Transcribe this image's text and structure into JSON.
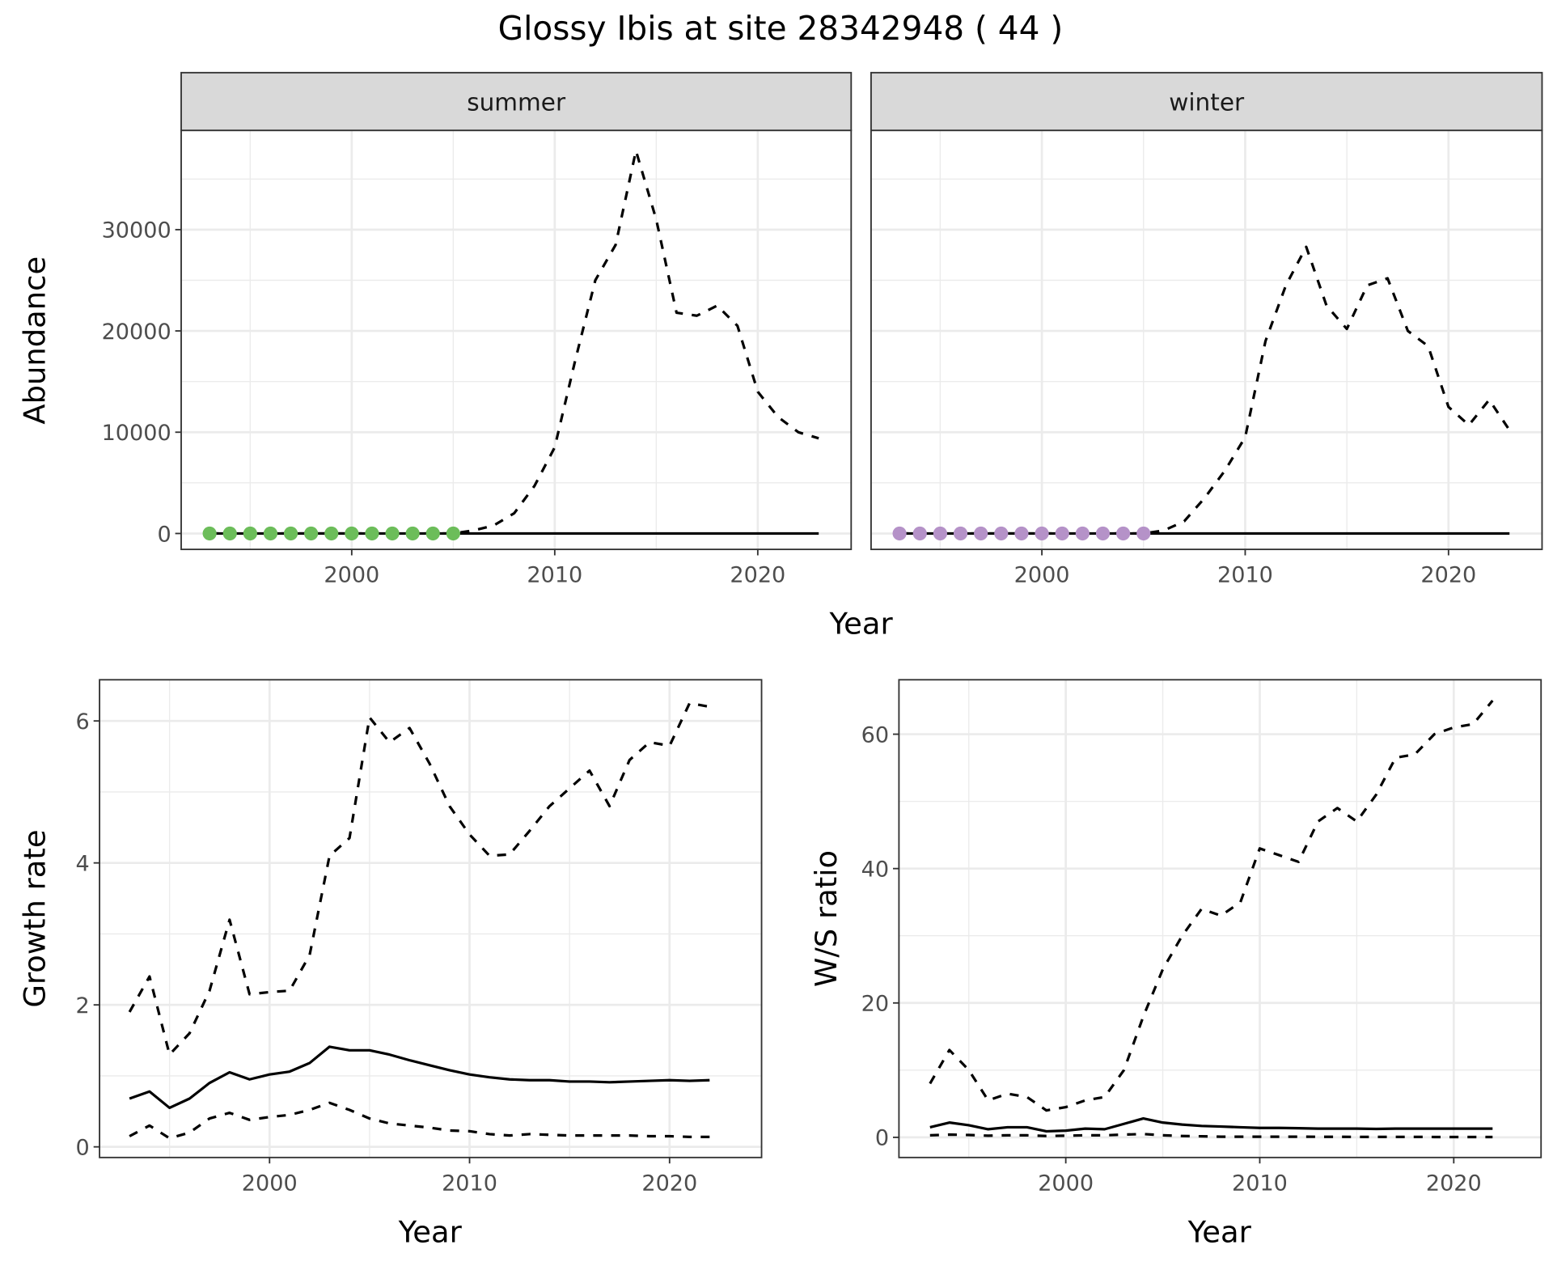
{
  "title": "Glossy Ibis at site 28342948 ( 44 )",
  "colors": {
    "summer_points": "#6cbd5a",
    "winter_points": "#b592c8",
    "line": "#000000",
    "strip_bg": "#d9d9d9",
    "grid": "#ebebeb"
  },
  "chart_data": [
    {
      "type": "line",
      "facet": "summer",
      "xlabel": "Year",
      "ylabel": "Abundance",
      "xlim": [
        1991.6,
        2024.6
      ],
      "ylim": [
        -1570,
        39800
      ],
      "xticks": [
        2000,
        2010,
        2020
      ],
      "yticks": [
        0,
        10000,
        20000,
        30000
      ],
      "grid": true,
      "points": {
        "x": [
          1993,
          1994,
          1995,
          1996,
          1997,
          1998,
          1999,
          2000,
          2001,
          2002,
          2003,
          2004,
          2005
        ],
        "y": [
          0,
          0,
          0,
          0,
          0,
          0,
          0,
          0,
          0,
          0,
          0,
          0,
          0
        ],
        "color": "#6cbd5a"
      },
      "series": [
        {
          "style": "dashed",
          "x": [
            1993,
            1994,
            1995,
            1996,
            1997,
            1998,
            1999,
            2000,
            2001,
            2002,
            2003,
            2004,
            2005,
            2006,
            2007,
            2008,
            2009,
            2010,
            2011,
            2012,
            2013,
            2014,
            2015,
            2016,
            2017,
            2018,
            2019,
            2020,
            2021,
            2022,
            2023
          ],
          "y": [
            0,
            0,
            0,
            0,
            0,
            0,
            0,
            0,
            0,
            0,
            0,
            0,
            0,
            300,
            800,
            2000,
            4700,
            8500,
            17000,
            25000,
            28500,
            37800,
            31000,
            21800,
            21500,
            22500,
            20500,
            14000,
            11500,
            10000,
            9400
          ]
        },
        {
          "style": "solid",
          "x": [
            1993,
            2023
          ],
          "y": [
            0,
            0
          ]
        }
      ]
    },
    {
      "type": "line",
      "facet": "winter",
      "xlabel": "Year",
      "ylabel": "Abundance",
      "xlim": [
        1991.6,
        2024.6
      ],
      "ylim": [
        -1570,
        39800
      ],
      "xticks": [
        2000,
        2010,
        2020
      ],
      "yticks": [
        0,
        10000,
        20000,
        30000
      ],
      "grid": true,
      "points": {
        "x": [
          1993,
          1994,
          1995,
          1996,
          1997,
          1998,
          1999,
          2000,
          2001,
          2002,
          2003,
          2004,
          2005
        ],
        "y": [
          0,
          0,
          0,
          0,
          0,
          0,
          0,
          0,
          0,
          0,
          0,
          0,
          0
        ],
        "color": "#b592c8"
      },
      "series": [
        {
          "style": "dashed",
          "x": [
            1993,
            1994,
            1995,
            1996,
            1997,
            1998,
            1999,
            2000,
            2001,
            2002,
            2003,
            2004,
            2005,
            2006,
            2007,
            2008,
            2009,
            2010,
            2011,
            2012,
            2013,
            2014,
            2015,
            2016,
            2017,
            2018,
            2019,
            2020,
            2021,
            2022,
            2023
          ],
          "y": [
            0,
            0,
            0,
            0,
            0,
            0,
            0,
            0,
            0,
            0,
            0,
            0,
            0,
            300,
            1200,
            3500,
            6200,
            9500,
            19000,
            24500,
            28300,
            22500,
            20200,
            24500,
            25200,
            20000,
            18500,
            12500,
            10700,
            13200,
            10200
          ]
        },
        {
          "style": "solid",
          "x": [
            1993,
            2023
          ],
          "y": [
            0,
            0
          ]
        }
      ]
    },
    {
      "type": "line",
      "xlabel": "Year",
      "ylabel": "Growth rate",
      "xlim": [
        1991.5,
        2024.6
      ],
      "ylim": [
        -0.15,
        6.58
      ],
      "xticks": [
        2000,
        2010,
        2020
      ],
      "yticks": [
        0,
        2,
        4,
        6
      ],
      "grid": true,
      "series": [
        {
          "style": "dashed",
          "x": [
            1993,
            1994,
            1995,
            1996,
            1997,
            1998,
            1999,
            2000,
            2001,
            2002,
            2003,
            2004,
            2005,
            2006,
            2007,
            2008,
            2009,
            2010,
            2011,
            2012,
            2013,
            2014,
            2015,
            2016,
            2017,
            2018,
            2019,
            2020,
            2021,
            2022
          ],
          "y": [
            1.9,
            2.4,
            1.3,
            1.6,
            2.2,
            3.2,
            2.15,
            2.18,
            2.2,
            2.7,
            4.1,
            4.35,
            6.05,
            5.7,
            5.9,
            5.4,
            4.8,
            4.4,
            4.1,
            4.12,
            4.45,
            4.8,
            5.05,
            5.3,
            4.8,
            5.45,
            5.7,
            5.65,
            6.25,
            6.2
          ]
        },
        {
          "style": "solid",
          "x": [
            1993,
            1994,
            1995,
            1996,
            1997,
            1998,
            1999,
            2000,
            2001,
            2002,
            2003,
            2004,
            2005,
            2006,
            2007,
            2008,
            2009,
            2010,
            2011,
            2012,
            2013,
            2014,
            2015,
            2016,
            2017,
            2018,
            2019,
            2020,
            2021,
            2022
          ],
          "y": [
            0.68,
            0.78,
            0.55,
            0.68,
            0.9,
            1.05,
            0.95,
            1.02,
            1.06,
            1.18,
            1.41,
            1.36,
            1.36,
            1.3,
            1.22,
            1.15,
            1.08,
            1.02,
            0.98,
            0.95,
            0.94,
            0.94,
            0.92,
            0.92,
            0.91,
            0.92,
            0.93,
            0.94,
            0.93,
            0.94
          ]
        },
        {
          "style": "dashed",
          "x": [
            1993,
            1994,
            1995,
            1996,
            1997,
            1998,
            1999,
            2000,
            2001,
            2002,
            2003,
            2004,
            2005,
            2006,
            2007,
            2008,
            2009,
            2010,
            2011,
            2012,
            2013,
            2014,
            2015,
            2016,
            2017,
            2018,
            2019,
            2020,
            2021,
            2022
          ],
          "y": [
            0.15,
            0.3,
            0.12,
            0.2,
            0.4,
            0.48,
            0.38,
            0.42,
            0.45,
            0.52,
            0.62,
            0.52,
            0.4,
            0.33,
            0.3,
            0.27,
            0.23,
            0.22,
            0.18,
            0.16,
            0.18,
            0.17,
            0.16,
            0.16,
            0.16,
            0.16,
            0.15,
            0.15,
            0.14,
            0.14
          ]
        }
      ]
    },
    {
      "type": "line",
      "xlabel": "Year",
      "ylabel": "W/S ratio",
      "xlim": [
        1991.4,
        2024.5
      ],
      "ylim": [
        -3,
        68.1
      ],
      "xticks": [
        2000,
        2010,
        2020
      ],
      "yticks": [
        0,
        20,
        40,
        60
      ],
      "grid": true,
      "series": [
        {
          "style": "dashed",
          "x": [
            1993,
            1994,
            1995,
            1996,
            1997,
            1998,
            1999,
            2000,
            2001,
            2002,
            2003,
            2004,
            2005,
            2006,
            2007,
            2008,
            2009,
            2010,
            2011,
            2012,
            2013,
            2014,
            2015,
            2016,
            2017,
            2018,
            2019,
            2020,
            2021,
            2022
          ],
          "y": [
            8,
            13,
            10,
            5.5,
            6.5,
            6,
            4,
            4.5,
            5.5,
            6,
            10,
            18,
            25,
            30,
            34,
            33,
            35,
            43,
            42,
            41,
            47,
            49,
            47,
            51,
            56.5,
            57,
            60,
            61,
            61.5,
            65
          ]
        },
        {
          "style": "solid",
          "x": [
            1993,
            1994,
            1995,
            1996,
            1997,
            1998,
            1999,
            2000,
            2001,
            2002,
            2003,
            2004,
            2005,
            2006,
            2007,
            2008,
            2009,
            2010,
            2011,
            2012,
            2013,
            2014,
            2015,
            2016,
            2017,
            2018,
            2019,
            2020,
            2021,
            2022
          ],
          "y": [
            1.5,
            2.2,
            1.8,
            1.2,
            1.5,
            1.5,
            0.9,
            1,
            1.3,
            1.2,
            2,
            2.8,
            2.2,
            1.9,
            1.7,
            1.6,
            1.5,
            1.4,
            1.4,
            1.35,
            1.3,
            1.3,
            1.3,
            1.25,
            1.3,
            1.3,
            1.3,
            1.3,
            1.3,
            1.3
          ]
        },
        {
          "style": "dashed",
          "x": [
            1993,
            1994,
            1995,
            1996,
            1997,
            1998,
            1999,
            2000,
            2001,
            2002,
            2003,
            2004,
            2005,
            2006,
            2007,
            2008,
            2009,
            2010,
            2011,
            2012,
            2013,
            2014,
            2015,
            2016,
            2017,
            2018,
            2019,
            2020,
            2021,
            2022
          ],
          "y": [
            0.3,
            0.4,
            0.35,
            0.25,
            0.3,
            0.3,
            0.2,
            0.25,
            0.3,
            0.3,
            0.4,
            0.5,
            0.3,
            0.2,
            0.15,
            0.1,
            0.1,
            0.1,
            0.1,
            0.1,
            0.08,
            0.08,
            0.07,
            0.07,
            0.06,
            0.06,
            0.05,
            0.05,
            0.05,
            0.05
          ]
        }
      ]
    }
  ]
}
